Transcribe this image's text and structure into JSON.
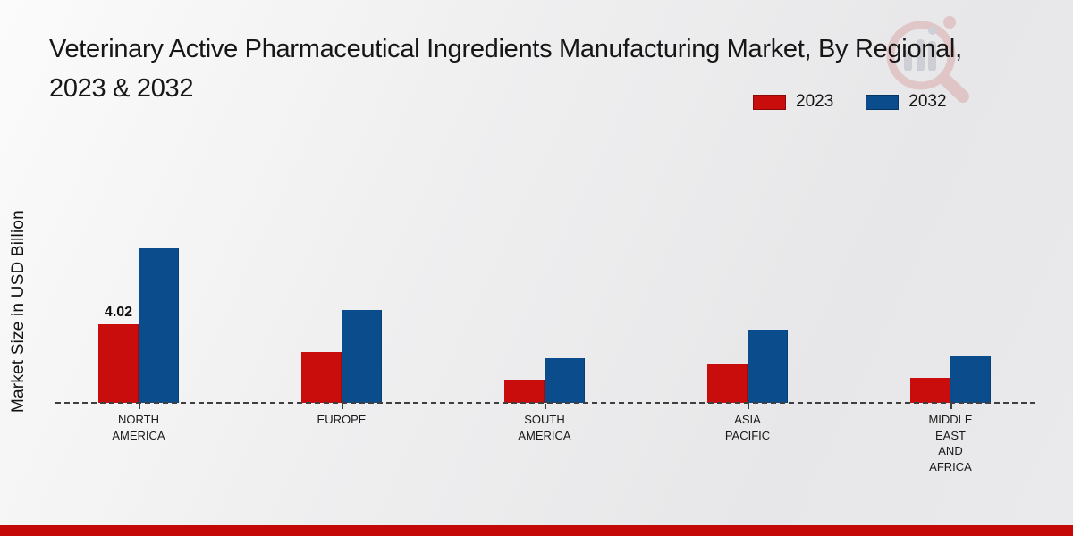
{
  "icons": {
    "watermark": "magnifier-bar-chart-logo"
  },
  "chart_data": {
    "type": "bar",
    "title": "Veterinary Active Pharmaceutical Ingredients Manufacturing Market, By Regional, 2023 & 2032",
    "xlabel": "",
    "ylabel": "Market Size in USD Billion",
    "categories": [
      "NORTH AMERICA",
      "EUROPE",
      "SOUTH AMERICA",
      "ASIA PACIFIC",
      "MIDDLE EAST AND AFRICA"
    ],
    "category_lines": [
      [
        "NORTH",
        "AMERICA"
      ],
      [
        "EUROPE"
      ],
      [
        "SOUTH",
        "AMERICA"
      ],
      [
        "ASIA",
        "PACIFIC"
      ],
      [
        "MIDDLE",
        "EAST",
        "AND",
        "AFRICA"
      ]
    ],
    "series": [
      {
        "name": "2023",
        "color": "#c90d0d",
        "values": [
          4.02,
          2.58,
          1.18,
          1.97,
          1.29
        ]
      },
      {
        "name": "2032",
        "color": "#0b4d8c",
        "values": [
          7.85,
          4.73,
          2.27,
          3.72,
          2.4
        ]
      }
    ],
    "annotations": [
      {
        "series_index": 0,
        "category_index": 0,
        "text": "4.02"
      }
    ],
    "ylim": [
      0,
      9
    ],
    "grid": false,
    "axis_visible": false,
    "baseline_style": "dashed",
    "legend_position": "top-right"
  },
  "footer": {
    "color": "#c40808"
  }
}
